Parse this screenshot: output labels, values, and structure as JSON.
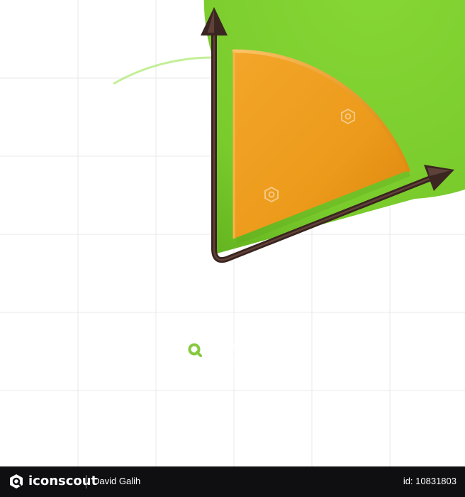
{
  "watermark": {
    "brand": "iconscout",
    "author": "David Galih"
  },
  "footer": {
    "brand": "iconscout",
    "author": "David Galih",
    "asset_id": "id: 10831803"
  },
  "colors": {
    "pie_main": "#7ccb2e",
    "pie_slice": "#f0a020",
    "arrow": "#3a2420",
    "footer_bg": "#0f0f12"
  }
}
